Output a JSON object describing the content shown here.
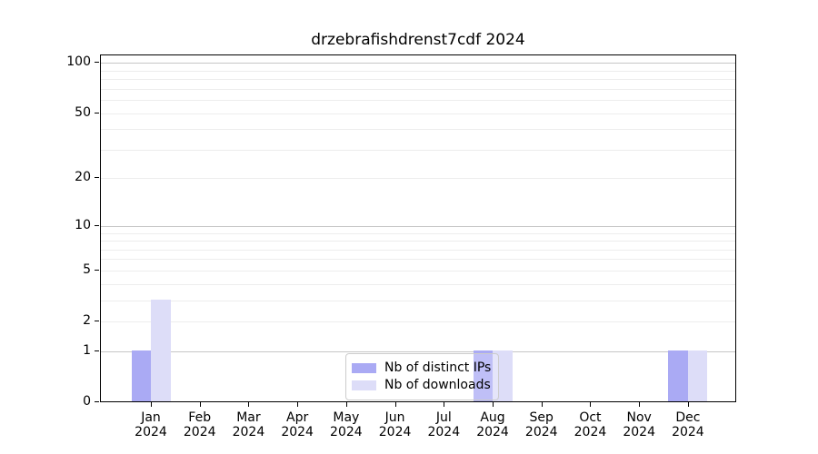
{
  "chart_data": {
    "type": "bar",
    "title": "drzebrafishdrenst7cdf 2024",
    "categories": [
      "Jan 2024",
      "Feb 2024",
      "Mar 2024",
      "Apr 2024",
      "May 2024",
      "Jun 2024",
      "Jul 2024",
      "Aug 2024",
      "Sep 2024",
      "Oct 2024",
      "Nov 2024",
      "Dec 2024"
    ],
    "series": [
      {
        "name": "Nb of distinct IPs",
        "color": "#aaaaf4",
        "values": [
          1,
          0,
          0,
          0,
          0,
          0,
          0,
          1,
          0,
          0,
          0,
          1
        ]
      },
      {
        "name": "Nb of downloads",
        "color": "#ddddf8",
        "values": [
          3,
          0,
          0,
          0,
          0,
          0,
          0,
          1,
          0,
          0,
          0,
          1
        ]
      }
    ],
    "yscale": "log1p",
    "ylim": [
      0,
      112
    ],
    "ytick_values": [
      0,
      1,
      2,
      5,
      10,
      20,
      50,
      100
    ],
    "major_grid_values": [
      1,
      10,
      100
    ],
    "minor_grid_values": [
      2,
      3,
      4,
      5,
      6,
      7,
      8,
      9,
      20,
      30,
      40,
      50,
      60,
      70,
      80,
      90
    ],
    "grid": "on",
    "legend_position": "lower center",
    "colors": {
      "major_grid": "#c6c6c6",
      "minor_grid": "#ededed",
      "axis": "#000000",
      "background": "#ffffff"
    }
  }
}
